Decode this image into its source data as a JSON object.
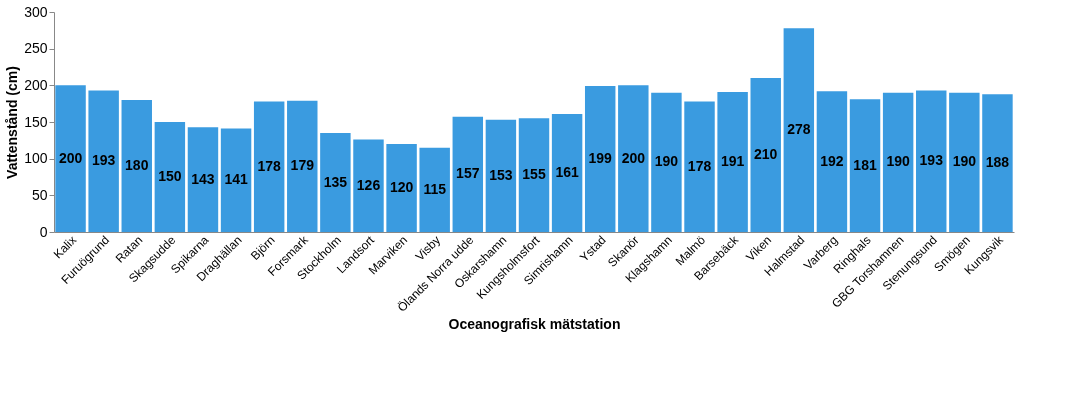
{
  "chart_data": {
    "type": "bar",
    "xlabel": "Oceanografisk mätstation",
    "ylabel": "Vattenstånd (cm)",
    "categories": [
      "Kalix",
      "Furuögrund",
      "Ratan",
      "Skagsudde",
      "Spikarna",
      "Draghällan",
      "Björn",
      "Forsmark",
      "Stockholm",
      "Landsort",
      "Marviken",
      "Visby",
      "Ölands Norra udde",
      "Oskarshamn",
      "Kungsholmsfort",
      "Simrishamn",
      "Ystad",
      "Skanör",
      "Klagshamn",
      "Malmö",
      "Barsebäck",
      "Viken",
      "Halmstad",
      "Varberg",
      "Ringhals",
      "GBG Torshamnen",
      "Stenungsund",
      "Smögen",
      "Kungsvik"
    ],
    "values": [
      200,
      193,
      180,
      150,
      143,
      141,
      178,
      179,
      135,
      126,
      120,
      115,
      157,
      153,
      155,
      161,
      199,
      200,
      190,
      178,
      191,
      210,
      278,
      192,
      181,
      190,
      193,
      190,
      188
    ],
    "color": "#3a9be0",
    "ylim": [
      0,
      300
    ],
    "yticks": [
      0,
      50,
      100,
      150,
      200,
      250,
      300
    ],
    "grid": false,
    "data_labels": true
  }
}
